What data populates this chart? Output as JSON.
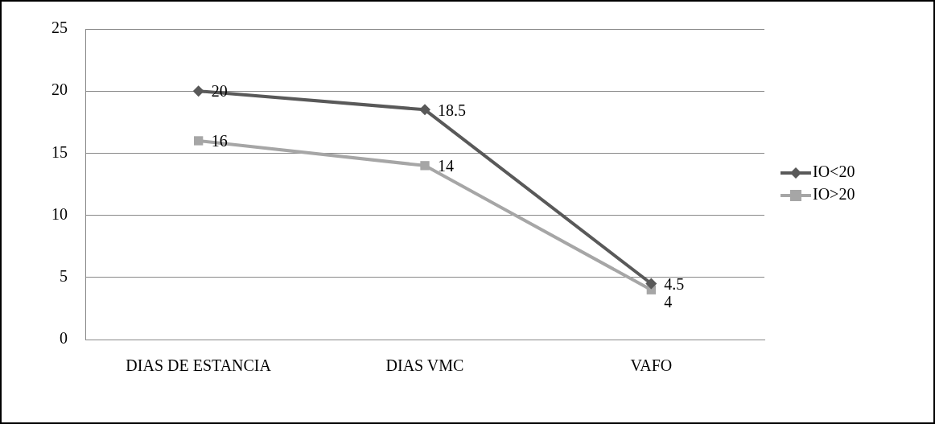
{
  "chart_data": {
    "type": "line",
    "categories": [
      "DIAS DE ESTANCIA",
      "DIAS VMC",
      "VAFO"
    ],
    "series": [
      {
        "name": "IO<20",
        "color": "#595959",
        "values": [
          20,
          18.5,
          4.5
        ],
        "marker": "diamond"
      },
      {
        "name": "IO>20",
        "color": "#a6a6a6",
        "values": [
          16,
          14,
          4
        ],
        "marker": "square"
      }
    ],
    "ylim": [
      0,
      25
    ],
    "yticks": [
      0,
      5,
      10,
      15,
      20,
      25
    ],
    "grid": "y",
    "legend": "right",
    "data_labels": true
  }
}
